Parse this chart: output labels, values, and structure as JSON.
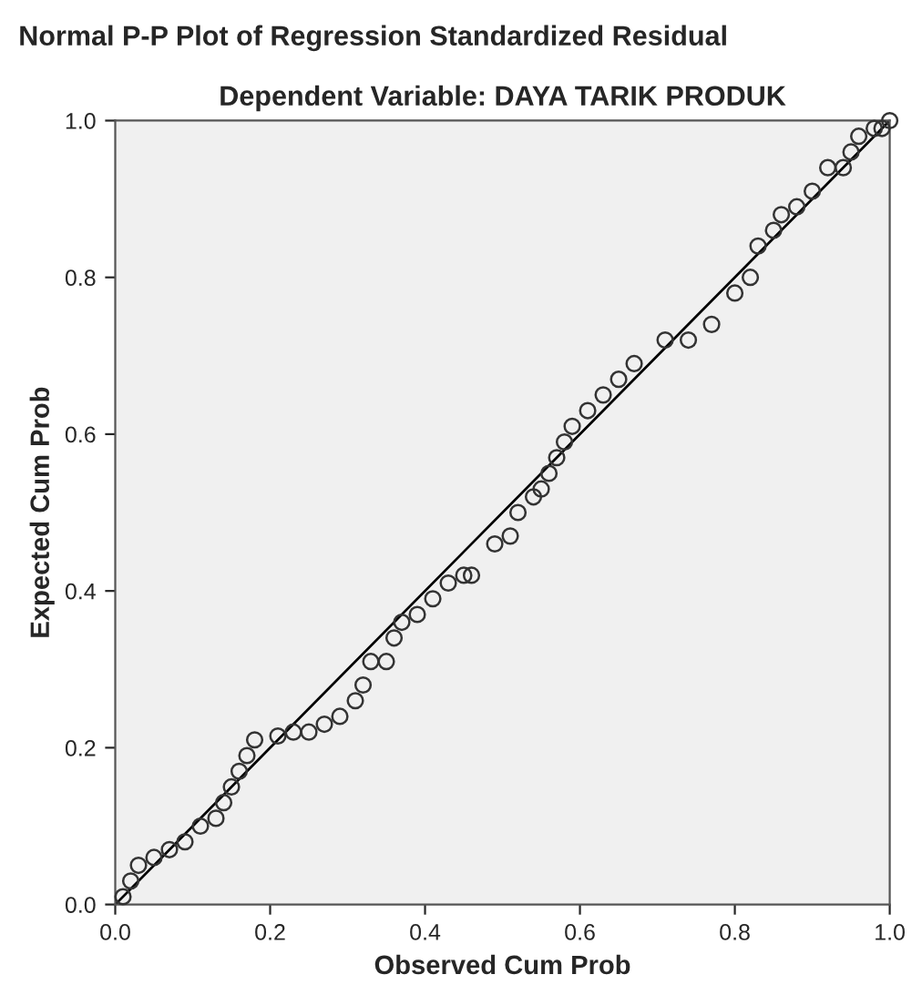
{
  "chart_data": {
    "type": "scatter",
    "title": "Normal P-P Plot of Regression Standardized Residual",
    "subtitle": "Dependent Variable: DAYA TARIK PRODUK",
    "xlabel": "Observed Cum Prob",
    "ylabel": "Expected Cum Prob",
    "xlim": [
      0.0,
      1.0
    ],
    "ylim": [
      0.0,
      1.0
    ],
    "xticks": [
      {
        "value": 0.0,
        "label": "0.0"
      },
      {
        "value": 0.2,
        "label": "0.2"
      },
      {
        "value": 0.4,
        "label": "0.4"
      },
      {
        "value": 0.6,
        "label": "0.6"
      },
      {
        "value": 0.8,
        "label": "0.8"
      },
      {
        "value": 1.0,
        "label": "1.0"
      }
    ],
    "yticks": [
      {
        "value": 0.0,
        "label": "0.0"
      },
      {
        "value": 0.2,
        "label": "0.2"
      },
      {
        "value": 0.4,
        "label": "0.4"
      },
      {
        "value": 0.6,
        "label": "0.6"
      },
      {
        "value": 0.8,
        "label": "0.8"
      },
      {
        "value": 1.0,
        "label": "1.0"
      }
    ],
    "grid": false,
    "marker": "circle",
    "series": [
      {
        "color": "#333333",
        "x": [
          0.01,
          0.02,
          0.03,
          0.05,
          0.07,
          0.09,
          0.11,
          0.13,
          0.14,
          0.15,
          0.16,
          0.17,
          0.18,
          0.21,
          0.23,
          0.25,
          0.27,
          0.29,
          0.31,
          0.32,
          0.33,
          0.35,
          0.36,
          0.37,
          0.39,
          0.41,
          0.43,
          0.45,
          0.46,
          0.49,
          0.51,
          0.52,
          0.54,
          0.55,
          0.56,
          0.57,
          0.58,
          0.59,
          0.61,
          0.63,
          0.65,
          0.67,
          0.71,
          0.74,
          0.77,
          0.8,
          0.82,
          0.83,
          0.85,
          0.86,
          0.88,
          0.9,
          0.92,
          0.94,
          0.95,
          0.96,
          0.98,
          0.99,
          1.0
        ],
        "values": [
          0.01,
          0.03,
          0.05,
          0.06,
          0.07,
          0.08,
          0.1,
          0.11,
          0.13,
          0.15,
          0.17,
          0.19,
          0.21,
          0.215,
          0.22,
          0.22,
          0.23,
          0.24,
          0.26,
          0.28,
          0.31,
          0.31,
          0.34,
          0.36,
          0.37,
          0.39,
          0.41,
          0.42,
          0.42,
          0.46,
          0.47,
          0.5,
          0.52,
          0.53,
          0.55,
          0.57,
          0.59,
          0.61,
          0.63,
          0.65,
          0.67,
          0.69,
          0.72,
          0.72,
          0.74,
          0.78,
          0.8,
          0.84,
          0.86,
          0.88,
          0.89,
          0.91,
          0.94,
          0.94,
          0.96,
          0.98,
          0.99,
          0.99,
          1.0
        ]
      },
      {
        "type": "line",
        "color": "#000000",
        "marker": "none",
        "x": [
          0.0,
          1.0
        ],
        "values": [
          0.0,
          1.0
        ]
      }
    ]
  }
}
